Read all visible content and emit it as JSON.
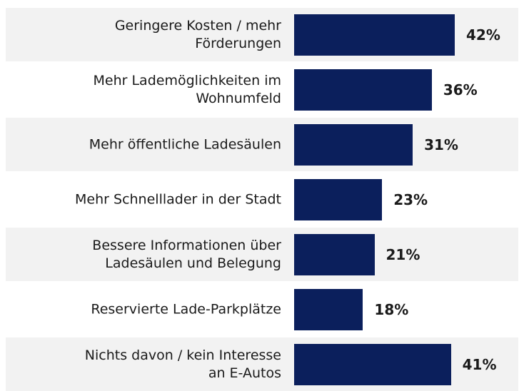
{
  "chart_data": {
    "type": "bar",
    "orientation": "horizontal",
    "categories": [
      "Geringere Kosten / mehr\nFörderungen",
      "Mehr Lademöglichkeiten im\nWohnumfeld",
      "Mehr öffentliche Ladesäulen",
      "Mehr Schnelllader in der Stadt",
      "Bessere Informationen über\nLadesäulen und Belegung",
      "Reservierte Lade-Parkplätze",
      "Nichts davon / kein Interesse\nan E-Autos"
    ],
    "values": [
      42,
      36,
      31,
      23,
      21,
      18,
      41
    ],
    "value_labels": [
      "42%",
      "36%",
      "31%",
      "23%",
      "21%",
      "18%",
      "41%"
    ],
    "color": "#0b1f5c"
  }
}
